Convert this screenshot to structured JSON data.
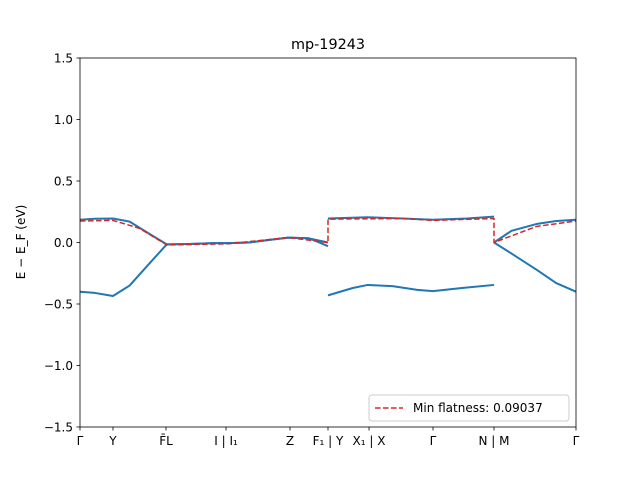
{
  "chart_data": {
    "type": "line",
    "title": "mp-19243",
    "ylabel": "E − E_F (eV)",
    "ylim": [
      -1.5,
      1.5
    ],
    "xlim": [
      0,
      1
    ],
    "yticks": [
      1.5,
      1.0,
      0.5,
      0.0,
      -0.5,
      -1.0,
      -1.5
    ],
    "ytick_labels": [
      "1.5",
      "1.0",
      "0.5",
      "0.0",
      "−0.5",
      "−1.0",
      "−1.5"
    ],
    "xticks": [
      0,
      0.0665,
      0.1734,
      0.2944,
      0.4234,
      0.5,
      0.5827,
      0.7117,
      0.8347,
      1.0
    ],
    "xtick_labels": [
      "Γ",
      "Y",
      "F̄L",
      "I | I₁",
      "Z",
      "F₁ | Y",
      "X₁ | X",
      "Γ",
      "N | M",
      "Γ"
    ],
    "grid": false,
    "legend": {
      "position": "lower-right",
      "entries": [
        "Min flatness: 0.09037"
      ]
    },
    "colors": {
      "band": "#1f77b4",
      "flat": "#d62728"
    },
    "series": [
      {
        "style": "solid",
        "x": [
          0,
          0.03,
          0.0665,
          0.1,
          0.14,
          0.175,
          0.22,
          0.27,
          0.3,
          0.34,
          0.38,
          0.42,
          0.46,
          0.5
        ],
        "y": [
          0.185,
          0.193,
          0.195,
          0.17,
          0.07,
          -0.015,
          -0.012,
          -0.005,
          -0.005,
          0.0,
          0.02,
          0.04,
          0.035,
          0.0
        ]
      },
      {
        "style": "solid",
        "x": [
          0,
          0.03,
          0.0665,
          0.1,
          0.14,
          0.175,
          0.22,
          0.27,
          0.3,
          0.34,
          0.38,
          0.42,
          0.46,
          0.474,
          0.5
        ],
        "y": [
          -0.4,
          -0.41,
          -0.435,
          -0.35,
          -0.17,
          -0.015,
          -0.012,
          -0.005,
          -0.005,
          0.0,
          0.02,
          0.04,
          0.035,
          0.015,
          -0.03
        ]
      },
      {
        "style": "solid",
        "x": [
          0.5,
          0.58,
          0.65,
          0.7117,
          0.78,
          0.8347
        ],
        "y": [
          0.195,
          0.205,
          0.195,
          0.185,
          0.195,
          0.21
        ]
      },
      {
        "style": "solid",
        "x": [
          0.5,
          0.55,
          0.58,
          0.63,
          0.68,
          0.7117,
          0.77,
          0.8347
        ],
        "y": [
          -0.43,
          -0.37,
          -0.345,
          -0.355,
          -0.385,
          -0.395,
          -0.37,
          -0.345
        ]
      },
      {
        "style": "solid",
        "x": [
          0.8347,
          0.87,
          0.92,
          0.96,
          1.0
        ],
        "y": [
          0.0,
          0.095,
          0.15,
          0.175,
          0.185
        ]
      },
      {
        "style": "solid",
        "x": [
          0.8347,
          0.87,
          0.92,
          0.96,
          1.0
        ],
        "y": [
          0.0,
          -0.09,
          -0.22,
          -0.33,
          -0.4
        ]
      },
      {
        "style": "dashed",
        "name": "Min flatness: 0.09037",
        "x": [
          0,
          0.0665,
          0.12,
          0.175,
          0.3,
          0.42,
          0.5,
          0.5,
          0.65,
          0.7117,
          0.8347,
          0.8347,
          0.92,
          1.0
        ],
        "y": [
          0.175,
          0.18,
          0.115,
          -0.02,
          -0.01,
          0.04,
          0.0,
          0.19,
          0.195,
          0.18,
          0.195,
          0.0,
          0.13,
          0.175
        ]
      }
    ]
  }
}
